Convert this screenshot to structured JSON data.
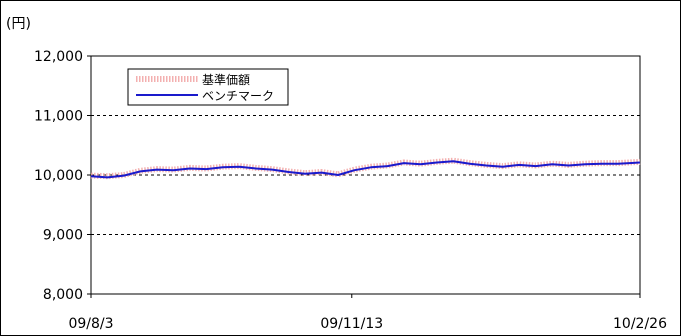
{
  "chart_data": {
    "type": "line",
    "ylabel": "(円)",
    "ylim": [
      8000,
      12000
    ],
    "yticks": [
      8000,
      9000,
      10000,
      11000,
      12000
    ],
    "ytick_labels": [
      "8,000",
      "9,000",
      "10,000",
      "11,000",
      "12,000"
    ],
    "xlim": [
      0,
      100
    ],
    "xticks": [
      0,
      47.5,
      100
    ],
    "xtick_labels": [
      "09/8/3",
      "09/11/13",
      "10/2/26"
    ],
    "grid": "horizontal-dashed",
    "legend_position": "top-left",
    "x": [
      0,
      3,
      6,
      9,
      12,
      15,
      18,
      21,
      24,
      27,
      30,
      33,
      36,
      39,
      42,
      45,
      48,
      51,
      54,
      57,
      60,
      63,
      66,
      69,
      72,
      75,
      78,
      81,
      84,
      87,
      90,
      93,
      96,
      100
    ],
    "series": [
      {
        "name": "基準価額",
        "color": "#f2a8a8",
        "style": "thick-dotted",
        "values": [
          9990,
          9980,
          10000,
          10070,
          10100,
          10090,
          10120,
          10110,
          10140,
          10150,
          10120,
          10100,
          10060,
          10030,
          10050,
          10010,
          10090,
          10140,
          10160,
          10210,
          10190,
          10220,
          10240,
          10200,
          10170,
          10150,
          10180,
          10160,
          10190,
          10170,
          10190,
          10200,
          10200,
          10220
        ]
      },
      {
        "name": "ベンチマーク",
        "color": "#1a1acc",
        "style": "solid",
        "values": [
          9980,
          9960,
          9990,
          10060,
          10090,
          10080,
          10110,
          10100,
          10130,
          10140,
          10110,
          10090,
          10050,
          10020,
          10040,
          10000,
          10080,
          10130,
          10150,
          10200,
          10180,
          10210,
          10230,
          10190,
          10160,
          10140,
          10170,
          10150,
          10180,
          10160,
          10180,
          10190,
          10190,
          10210
        ]
      }
    ]
  }
}
